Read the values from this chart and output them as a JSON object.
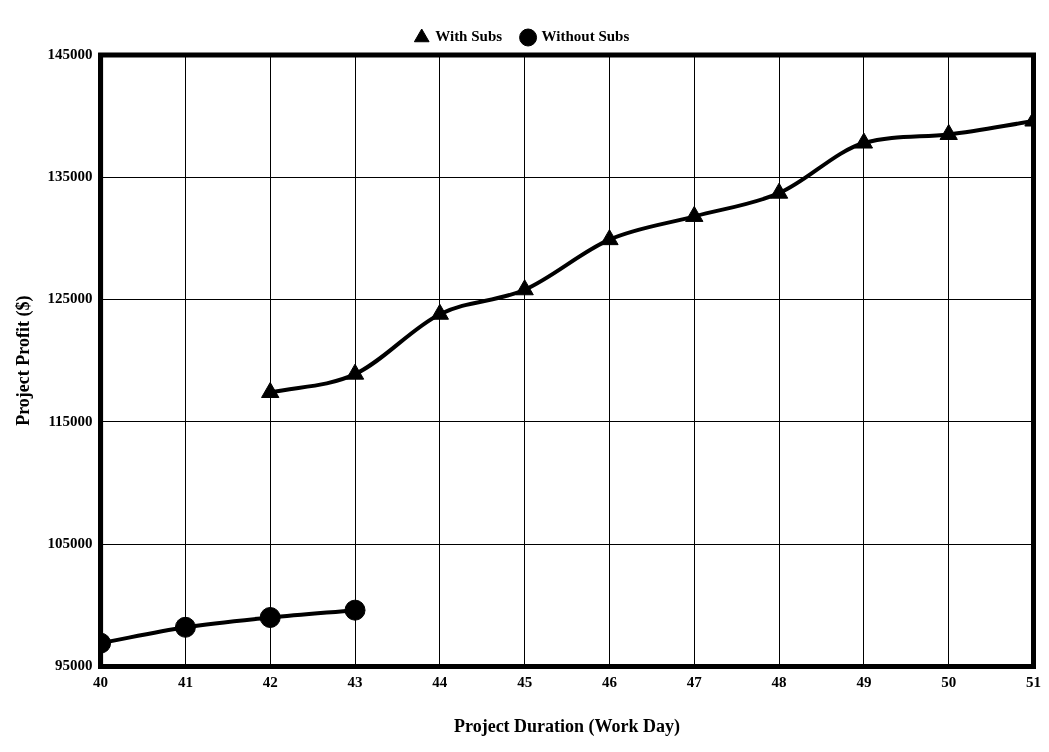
{
  "chart_data": {
    "type": "line",
    "xlabel": "Project Duration (Work Day)",
    "ylabel": "Project Profit ($)",
    "xlim": [
      40,
      51
    ],
    "xticks": [
      40,
      41,
      42,
      43,
      44,
      45,
      46,
      47,
      48,
      49,
      50,
      51
    ],
    "ylim": [
      95000,
      145000
    ],
    "yticks": [
      95000,
      105000,
      115000,
      125000,
      135000,
      145000
    ],
    "grid": true,
    "legend": "top",
    "line_style": "solid",
    "series": [
      {
        "name": "With Subs",
        "color": "#000000",
        "marker": "triangle",
        "x": [
          42,
          43,
          44,
          45,
          46,
          47,
          48,
          49,
          50,
          51
        ],
        "values": [
          117400,
          118900,
          123800,
          125800,
          129900,
          131800,
          133700,
          137800,
          138500,
          139600
        ]
      },
      {
        "name": "Without Subs",
        "color": "#000000",
        "marker": "circle",
        "x": [
          40,
          41,
          42,
          43
        ],
        "values": [
          96900,
          98200,
          99000,
          99600
        ]
      }
    ]
  }
}
